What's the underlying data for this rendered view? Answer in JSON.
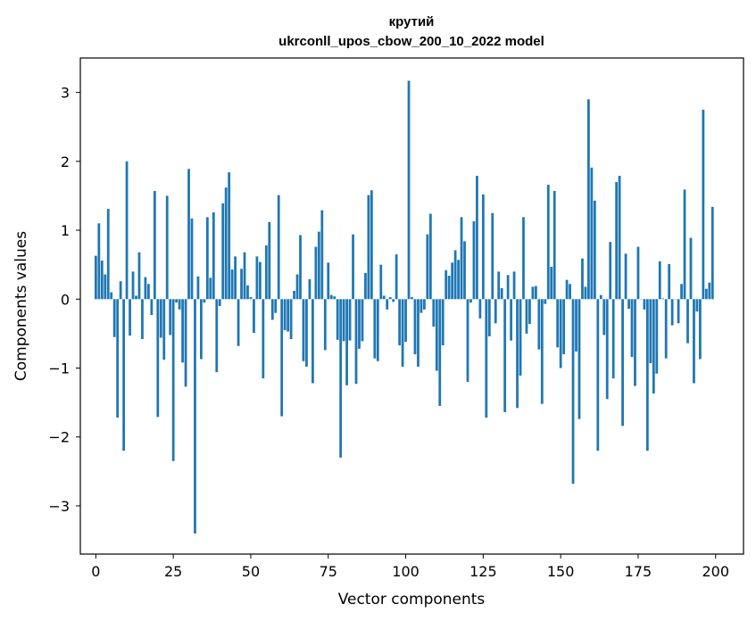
{
  "chart_data": {
    "type": "bar",
    "title": "крутий",
    "subtitle": "ukrconll_upos_cbow_200_10_2022 model",
    "xlabel": "Vector components",
    "ylabel": "Components values",
    "xlim": [
      -5,
      209
    ],
    "ylim": [
      -3.7,
      3.5
    ],
    "xticks": [
      0,
      25,
      50,
      75,
      100,
      125,
      150,
      175,
      200
    ],
    "yticks": [
      -3,
      -2,
      -1,
      0,
      1,
      2,
      3
    ],
    "ytick_labels": [
      "−3",
      "−2",
      "−1",
      "0",
      "1",
      "2",
      "3"
    ],
    "grid": false,
    "bar_color": "#1f77b4",
    "values": [
      0.63,
      1.1,
      0.56,
      0.36,
      1.31,
      0.1,
      -0.55,
      -1.72,
      0.26,
      -2.2,
      2.0,
      -0.53,
      0.4,
      0.05,
      0.68,
      -0.58,
      0.32,
      0.22,
      -0.23,
      1.57,
      -1.71,
      -0.56,
      -0.88,
      1.5,
      -0.52,
      -2.35,
      -0.05,
      -0.15,
      -0.92,
      -1.27,
      1.89,
      1.17,
      -3.4,
      0.33,
      -0.87,
      -0.05,
      1.19,
      0.31,
      1.26,
      -1.06,
      -0.1,
      1.39,
      1.62,
      1.84,
      0.43,
      0.62,
      -0.68,
      0.44,
      0.68,
      0.2,
      0.03,
      -0.49,
      0.62,
      0.54,
      -1.15,
      0.78,
      1.12,
      -0.3,
      -0.2,
      1.51,
      -1.7,
      -0.45,
      -0.47,
      -0.58,
      0.12,
      0.36,
      0.93,
      -0.9,
      -0.98,
      0.29,
      -1.22,
      0.76,
      0.98,
      1.29,
      -0.74,
      0.53,
      0.06,
      0.04,
      -0.59,
      -2.3,
      -0.61,
      -1.25,
      -0.6,
      0.94,
      -1.23,
      -0.72,
      -0.61,
      0.38,
      1.51,
      1.58,
      -0.86,
      -0.9,
      0.5,
      0.05,
      -0.15,
      0.03,
      -0.04,
      0.65,
      -0.67,
      -0.98,
      -0.62,
      3.17,
      0.03,
      -0.8,
      -0.98,
      -0.2,
      -0.15,
      0.94,
      1.24,
      -0.4,
      -1.04,
      -1.55,
      -0.67,
      0.42,
      0.34,
      0.53,
      0.71,
      0.57,
      1.19,
      0.84,
      -1.2,
      -0.05,
      1.13,
      1.79,
      -0.28,
      1.52,
      -1.72,
      -0.54,
      1.25,
      -0.35,
      0.4,
      0.16,
      -1.64,
      0.35,
      -0.6,
      0.4,
      -1.58,
      -1.11,
      1.19,
      -0.5,
      -0.36,
      0.18,
      0.19,
      -0.73,
      -1.52,
      -0.07,
      1.66,
      0.47,
      1.57,
      -0.7,
      -1.0,
      -0.8,
      0.28,
      0.22,
      -2.68,
      -0.76,
      -1.74,
      0.59,
      0.18,
      2.9,
      1.91,
      1.43,
      -2.2,
      0.06,
      -0.52,
      -1.45,
      0.83,
      -1.15,
      1.7,
      1.79,
      -1.84,
      0.66,
      -0.14,
      -0.84,
      -1.26,
      0.76,
      0.0,
      -0.15,
      -2.2,
      -0.93,
      -1.37,
      -1.08,
      0.55,
      0.01,
      -0.86,
      0.51,
      -0.38,
      0.0,
      -0.35,
      0.22,
      1.59,
      -0.64,
      0.89,
      -1.22,
      -0.18,
      -0.87,
      2.75,
      0.15,
      0.24,
      1.34
    ]
  }
}
